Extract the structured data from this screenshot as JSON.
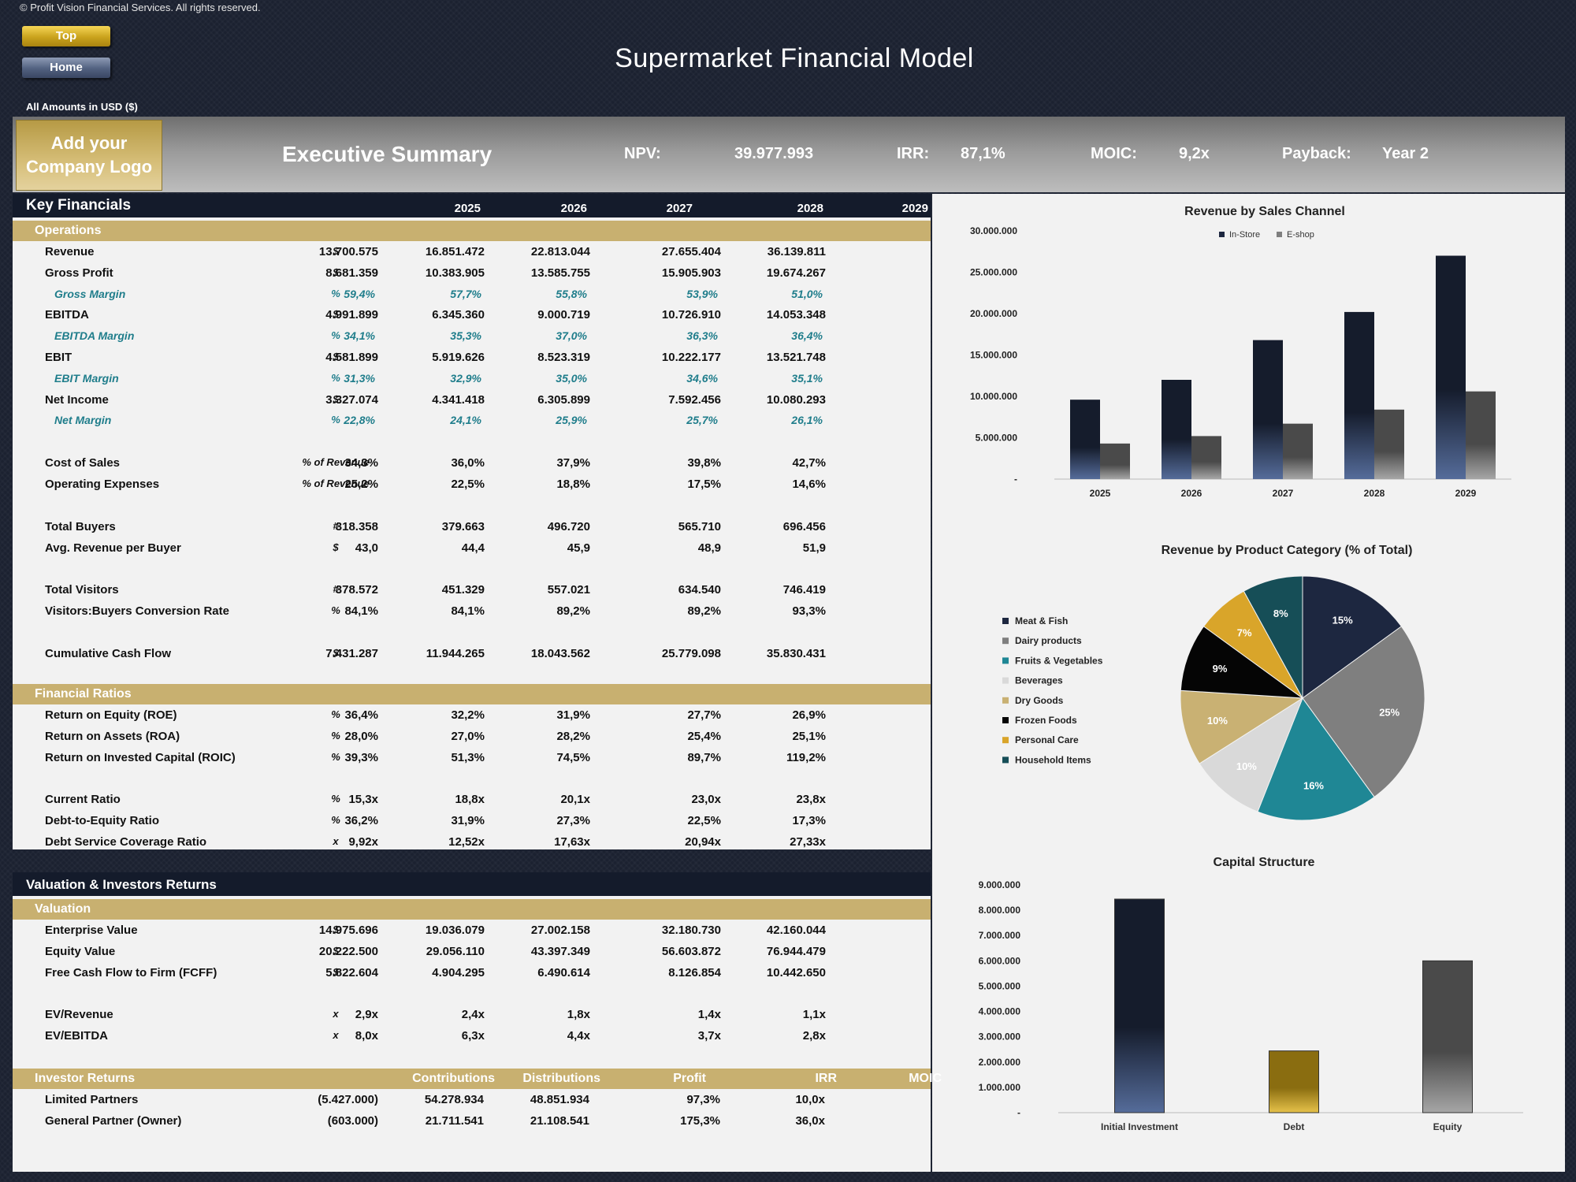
{
  "copyright": "© Profit Vision Financial Services. All rights reserved.",
  "nav": {
    "top_label": "Top",
    "home_label": "Home"
  },
  "title": "Supermarket Financial Model",
  "amounts_note": "All Amounts in  USD ($)",
  "summary": {
    "logo_line1": "Add your",
    "logo_line2": "Company Logo",
    "section": "Executive Summary",
    "npv_label": "NPV:",
    "npv_value": "39.977.993",
    "irr_label": "IRR:",
    "irr_value": "87,1%",
    "moic_label": "MOIC:",
    "moic_value": "9,2x",
    "payback_label": "Payback:",
    "payback_value": "Year 2"
  },
  "key_financials": {
    "title": "Key Financials",
    "years": [
      "2025",
      "2026",
      "2027",
      "2028",
      "2029"
    ],
    "operations_title": "Operations",
    "operations": [
      {
        "label": "Revenue",
        "unit": "$",
        "values": [
          "13.700.575",
          "16.851.472",
          "22.813.044",
          "27.655.404",
          "36.139.811"
        ]
      },
      {
        "label": "Gross Profit",
        "unit": "$",
        "values": [
          "8.681.359",
          "10.383.905",
          "13.585.755",
          "15.905.903",
          "19.674.267"
        ]
      },
      {
        "label": "Gross Margin",
        "unit": "%",
        "pct": true,
        "values": [
          "59,4%",
          "57,7%",
          "55,8%",
          "53,9%",
          "51,0%"
        ]
      },
      {
        "label": "EBITDA",
        "unit": "$",
        "values": [
          "4.991.899",
          "6.345.360",
          "9.000.719",
          "10.726.910",
          "14.053.348"
        ]
      },
      {
        "label": "EBITDA Margin",
        "unit": "%",
        "pct": true,
        "values": [
          "34,1%",
          "35,3%",
          "37,0%",
          "36,3%",
          "36,4%"
        ]
      },
      {
        "label": "EBIT",
        "unit": "$",
        "values": [
          "4.581.899",
          "5.919.626",
          "8.523.319",
          "10.222.177",
          "13.521.748"
        ]
      },
      {
        "label": "EBIT Margin",
        "unit": "%",
        "pct": true,
        "values": [
          "31,3%",
          "32,9%",
          "35,0%",
          "34,6%",
          "35,1%"
        ]
      },
      {
        "label": "Net Income",
        "unit": "$",
        "values": [
          "3.327.074",
          "4.341.418",
          "6.305.899",
          "7.592.456",
          "10.080.293"
        ]
      },
      {
        "label": "Net Margin",
        "unit": "%",
        "pct": true,
        "values": [
          "22,8%",
          "24,1%",
          "25,9%",
          "25,7%",
          "26,1%"
        ]
      },
      {
        "label": "Cost of Sales",
        "unit": "% of Revenue",
        "values": [
          "34,3%",
          "36,0%",
          "37,9%",
          "39,8%",
          "42,7%"
        ]
      },
      {
        "label": "Operating Expenses",
        "unit": "% of Revenue",
        "values": [
          "25,2%",
          "22,5%",
          "18,8%",
          "17,5%",
          "14,6%"
        ]
      },
      {
        "label": "Total Buyers",
        "unit": "#",
        "values": [
          "318.358",
          "379.663",
          "496.720",
          "565.710",
          "696.456"
        ]
      },
      {
        "label": "Avg. Revenue per Buyer",
        "unit": "$",
        "values": [
          "43,0",
          "44,4",
          "45,9",
          "48,9",
          "51,9"
        ]
      },
      {
        "label": "Total Visitors",
        "unit": "#",
        "values": [
          "378.572",
          "451.329",
          "557.021",
          "634.540",
          "746.419"
        ]
      },
      {
        "label": "Visitors:Buyers Conversion Rate",
        "unit": "%",
        "values": [
          "84,1%",
          "84,1%",
          "89,2%",
          "89,2%",
          "93,3%"
        ]
      },
      {
        "label": "Cumulative Cash Flow",
        "unit": "$",
        "values": [
          "7.431.287",
          "11.944.265",
          "18.043.562",
          "25.779.098",
          "35.830.431"
        ]
      }
    ],
    "ratios_title": "Financial Ratios",
    "ratios": [
      {
        "label": "Return on Equity (ROE)",
        "unit": "%",
        "values": [
          "36,4%",
          "32,2%",
          "31,9%",
          "27,7%",
          "26,9%"
        ]
      },
      {
        "label": "Return on Assets (ROA)",
        "unit": "%",
        "values": [
          "28,0%",
          "27,0%",
          "28,2%",
          "25,4%",
          "25,1%"
        ]
      },
      {
        "label": "Return on Invested Capital (ROIC)",
        "unit": "%",
        "values": [
          "39,3%",
          "51,3%",
          "74,5%",
          "89,7%",
          "119,2%"
        ]
      },
      {
        "label": "Current Ratio",
        "unit": "%",
        "values": [
          "15,3x",
          "18,8x",
          "20,1x",
          "23,0x",
          "23,8x"
        ]
      },
      {
        "label": "Debt-to-Equity Ratio",
        "unit": "%",
        "values": [
          "36,2%",
          "31,9%",
          "27,3%",
          "22,5%",
          "17,3%"
        ]
      },
      {
        "label": "Debt Service Coverage Ratio",
        "unit": "x",
        "values": [
          "9,92x",
          "12,52x",
          "17,63x",
          "20,94x",
          "27,33x"
        ]
      }
    ]
  },
  "valuation": {
    "title": "Valuation & Investors Returns",
    "valuation_title": "Valuation",
    "rows": [
      {
        "label": "Enterprise Value",
        "unit": "$",
        "values": [
          "14.975.696",
          "19.036.079",
          "27.002.158",
          "32.180.730",
          "42.160.044"
        ]
      },
      {
        "label": "Equity Value",
        "unit": "$",
        "values": [
          "20.222.500",
          "29.056.110",
          "43.397.349",
          "56.603.872",
          "76.944.479"
        ]
      },
      {
        "label": "Free Cash Flow to Firm (FCFF)",
        "unit": "$",
        "values": [
          "5.822.604",
          "4.904.295",
          "6.490.614",
          "8.126.854",
          "10.442.650"
        ]
      },
      {
        "label": "EV/Revenue",
        "unit": "x",
        "values": [
          "2,9x",
          "2,4x",
          "1,8x",
          "1,4x",
          "1,1x"
        ]
      },
      {
        "label": "EV/EBITDA",
        "unit": "x",
        "values": [
          "8,0x",
          "6,3x",
          "4,4x",
          "3,7x",
          "2,8x"
        ]
      }
    ],
    "investor_title": "Investor Returns",
    "investor_cols": [
      "Contributions",
      "Distributions",
      "Profit",
      "IRR",
      "MOIC"
    ],
    "investors": [
      {
        "label": "Limited Partners",
        "values": [
          "(5.427.000)",
          "54.278.934",
          "48.851.934",
          "97,3%",
          "10,0x"
        ]
      },
      {
        "label": "General Partner (Owner)",
        "values": [
          "(603.000)",
          "21.711.541",
          "21.108.541",
          "175,3%",
          "36,0x"
        ]
      }
    ]
  },
  "colors": {
    "navy": "#141b2b",
    "gold": "#c8b070",
    "teal": "#1f7d8b",
    "grey": "#7f7f7f"
  },
  "chart_data": [
    {
      "type": "bar",
      "title": "Revenue by Sales Channel",
      "categories": [
        "2025",
        "2026",
        "2027",
        "2028",
        "2029"
      ],
      "series": [
        {
          "name": "In-Store",
          "values": [
            9600000,
            12000000,
            16800000,
            20200000,
            27000000
          ]
        },
        {
          "name": "E-shop",
          "values": [
            4300000,
            5200000,
            6700000,
            8400000,
            10600000
          ]
        }
      ],
      "ylim": [
        0,
        30000000
      ],
      "yticks": [
        "-",
        "5.000.000",
        "10.000.000",
        "15.000.000",
        "20.000.000",
        "25.000.000",
        "30.000.000"
      ],
      "legend": "top"
    },
    {
      "type": "pie",
      "title": "Revenue by Product Category (% of Total)",
      "slices": [
        {
          "name": "Meat & Fish",
          "value": 15,
          "label": "15%",
          "color": "#1d2740"
        },
        {
          "name": "Dairy products",
          "value": 25,
          "label": "25%",
          "color": "#7f7f7f"
        },
        {
          "name": "Fruits & Vegetables",
          "value": 16,
          "label": "16%",
          "color": "#1f8795"
        },
        {
          "name": "Beverages",
          "value": 10,
          "label": "10%",
          "color": "#d9d9d9"
        },
        {
          "name": "Dry Goods",
          "value": 10,
          "label": "10%",
          "color": "#c9b173"
        },
        {
          "name": "Frozen Foods",
          "value": 9,
          "label": "9%",
          "color": "#050505"
        },
        {
          "name": "Personal Care",
          "value": 7,
          "label": "7%",
          "color": "#d9a52a"
        },
        {
          "name": "Household Items",
          "value": 8,
          "label": "8%",
          "color": "#164e57"
        }
      ],
      "legend": "left"
    },
    {
      "type": "bar",
      "title": "Capital Structure",
      "categories": [
        "Initial Investment",
        "Debt",
        "Equity"
      ],
      "values": [
        8440000,
        2440000,
        6000000
      ],
      "colors": [
        "#1d2740",
        "#d4ad2e",
        "#8a8a8a"
      ],
      "ylim": [
        0,
        9000000
      ],
      "yticks": [
        "-",
        "1.000.000",
        "2.000.000",
        "3.000.000",
        "4.000.000",
        "5.000.000",
        "6.000.000",
        "7.000.000",
        "8.000.000",
        "9.000.000"
      ]
    }
  ]
}
